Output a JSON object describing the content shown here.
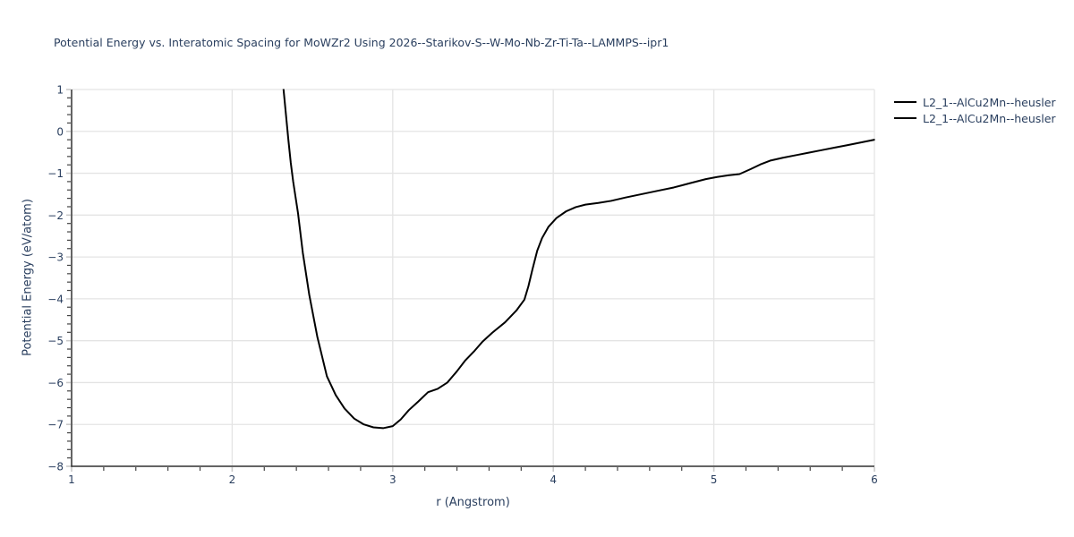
{
  "chart_data": {
    "type": "line",
    "title": "Potential Energy vs. Interatomic Spacing for MoWZr2 Using 2026--Starikov-S--W-Mo-Nb-Zr-Ti-Ta--LAMMPS--ipr1",
    "xlabel": "r (Angstrom)",
    "ylabel": "Potential Energy (eV/atom)",
    "xlim": [
      1,
      6
    ],
    "ylim": [
      -8,
      1
    ],
    "xticks": [
      1,
      2,
      3,
      4,
      5,
      6
    ],
    "xtick_labels": [
      "1",
      "2",
      "3",
      "4",
      "5",
      "6"
    ],
    "yticks": [
      1,
      0,
      -1,
      -2,
      -3,
      -4,
      -5,
      -6,
      -7,
      -8
    ],
    "ytick_labels": [
      "1",
      "0",
      "−1",
      "−2",
      "−3",
      "−4",
      "−5",
      "−6",
      "−7",
      "−8"
    ],
    "minor_tick_step": 0.2,
    "grid": true,
    "legend_position": "outside-top-right",
    "legend_entries": [
      {
        "label": "L2_1--AlCu2Mn--heusler",
        "color": "#000000"
      },
      {
        "label": "L2_1--AlCu2Mn--heusler",
        "color": "#000000"
      }
    ],
    "series": [
      {
        "name": "L2_1--AlCu2Mn--heusler",
        "color": "#000000",
        "points": [
          [
            2.3,
            2.0
          ],
          [
            2.32,
            1.0
          ],
          [
            2.335,
            0.4
          ],
          [
            2.35,
            -0.2
          ],
          [
            2.365,
            -0.75
          ],
          [
            2.38,
            -1.2
          ],
          [
            2.41,
            -1.95
          ],
          [
            2.44,
            -2.9
          ],
          [
            2.48,
            -3.9
          ],
          [
            2.53,
            -4.9
          ],
          [
            2.59,
            -5.85
          ],
          [
            2.645,
            -6.3
          ],
          [
            2.7,
            -6.62
          ],
          [
            2.76,
            -6.86
          ],
          [
            2.82,
            -7.0
          ],
          [
            2.88,
            -7.07
          ],
          [
            2.94,
            -7.09
          ],
          [
            3.0,
            -7.04
          ],
          [
            3.05,
            -6.88
          ],
          [
            3.1,
            -6.66
          ],
          [
            3.16,
            -6.45
          ],
          [
            3.22,
            -6.23
          ],
          [
            3.28,
            -6.15
          ],
          [
            3.34,
            -6.0
          ],
          [
            3.4,
            -5.73
          ],
          [
            3.45,
            -5.48
          ],
          [
            3.51,
            -5.24
          ],
          [
            3.56,
            -5.02
          ],
          [
            3.62,
            -4.81
          ],
          [
            3.7,
            -4.56
          ],
          [
            3.77,
            -4.28
          ],
          [
            3.82,
            -4.02
          ],
          [
            3.845,
            -3.7
          ],
          [
            3.87,
            -3.3
          ],
          [
            3.9,
            -2.85
          ],
          [
            3.93,
            -2.55
          ],
          [
            3.97,
            -2.28
          ],
          [
            4.02,
            -2.07
          ],
          [
            4.08,
            -1.91
          ],
          [
            4.14,
            -1.81
          ],
          [
            4.2,
            -1.75
          ],
          [
            4.28,
            -1.71
          ],
          [
            4.36,
            -1.66
          ],
          [
            4.45,
            -1.58
          ],
          [
            4.55,
            -1.5
          ],
          [
            4.65,
            -1.42
          ],
          [
            4.75,
            -1.34
          ],
          [
            4.85,
            -1.24
          ],
          [
            4.95,
            -1.14
          ],
          [
            5.02,
            -1.09
          ],
          [
            5.09,
            -1.05
          ],
          [
            5.16,
            -1.02
          ],
          [
            5.23,
            -0.9
          ],
          [
            5.29,
            -0.79
          ],
          [
            5.35,
            -0.7
          ],
          [
            5.43,
            -0.63
          ],
          [
            5.51,
            -0.57
          ],
          [
            5.59,
            -0.51
          ],
          [
            5.67,
            -0.45
          ],
          [
            5.75,
            -0.39
          ],
          [
            5.83,
            -0.33
          ],
          [
            5.91,
            -0.27
          ],
          [
            6.0,
            -0.2
          ]
        ]
      }
    ]
  },
  "colors": {
    "text": "#2a3f5f",
    "grid": "#e4e4e4",
    "axis_spine": "#333333",
    "major_tick": "#c9c9c9",
    "minor_tick": "#444444",
    "curve": "#000000",
    "background": "#ffffff"
  }
}
